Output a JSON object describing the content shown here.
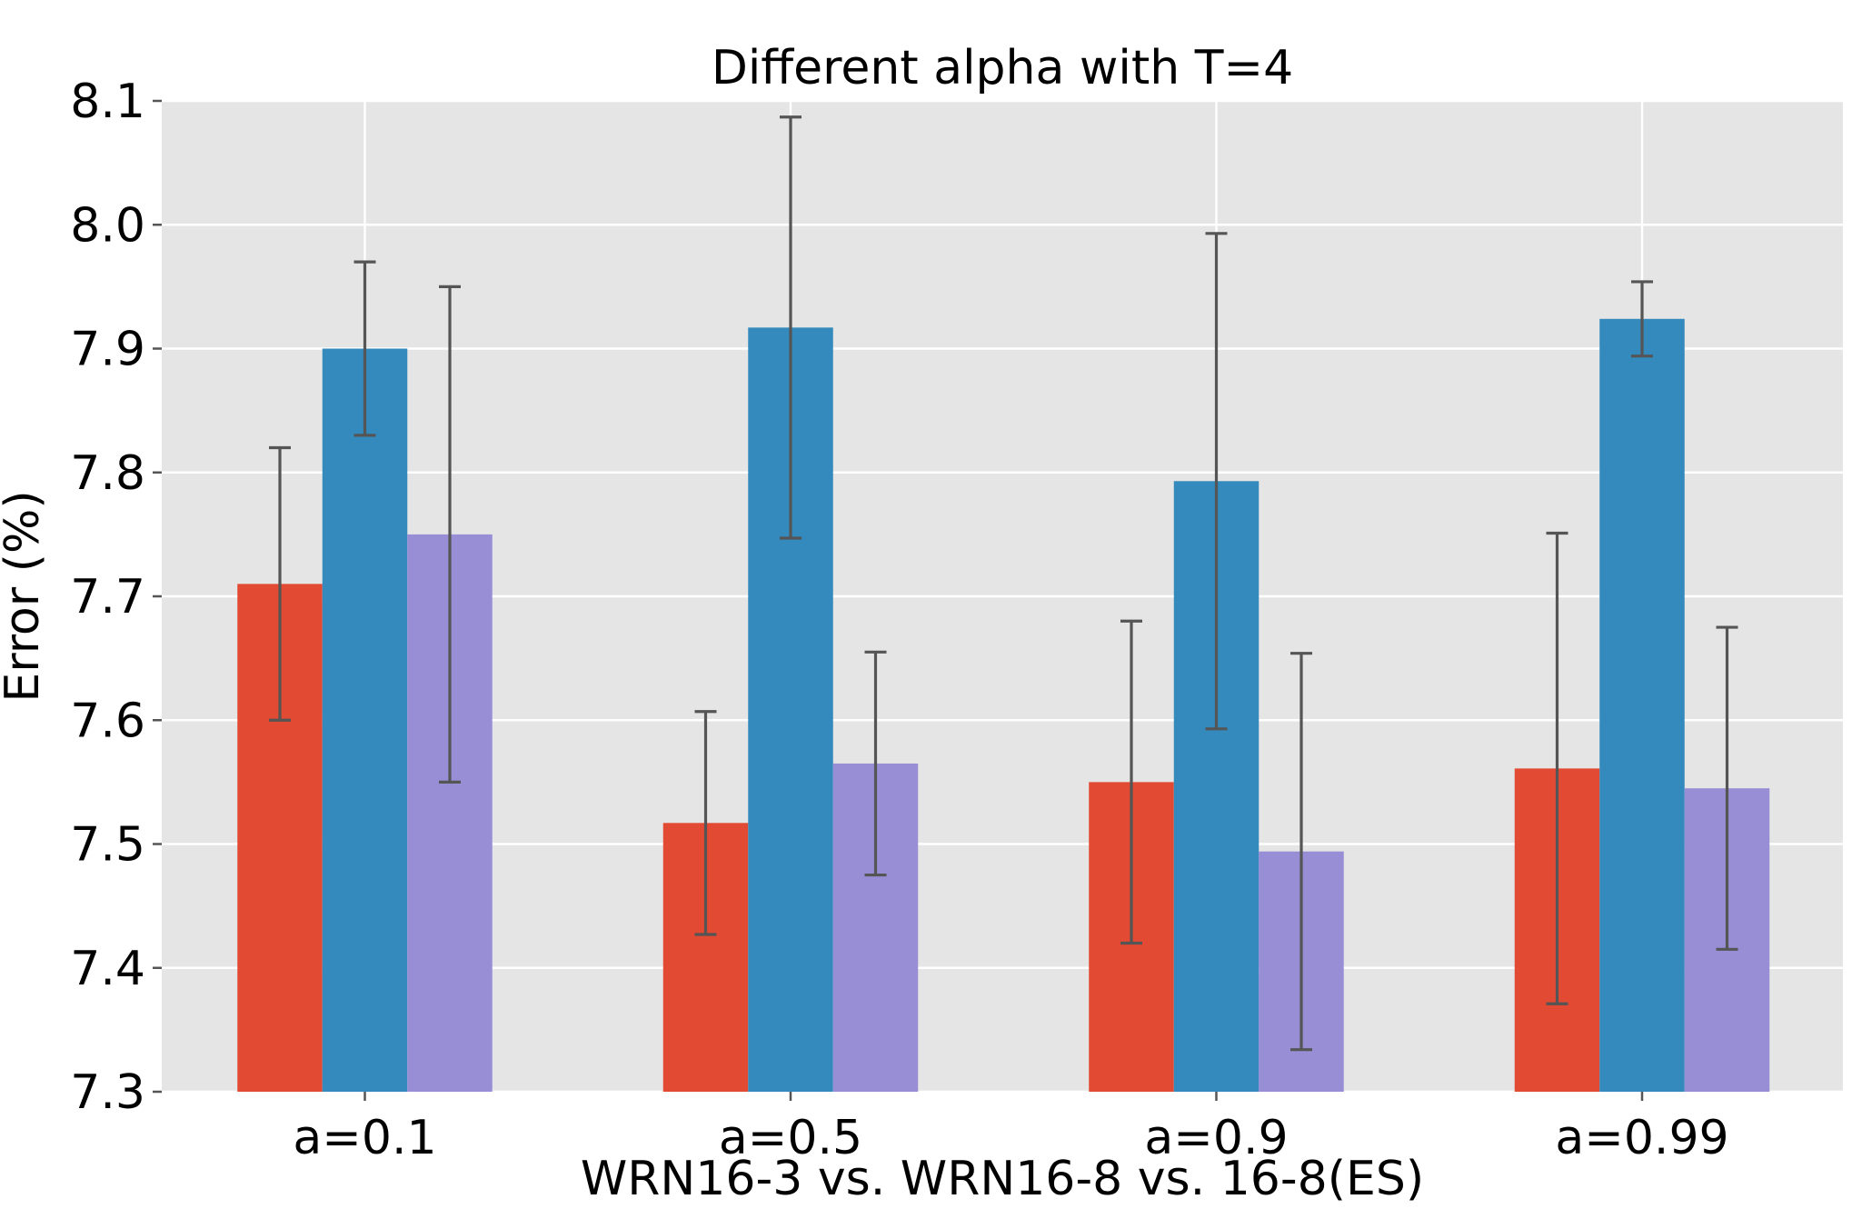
{
  "chart_data": {
    "type": "bar",
    "title": "Different alpha with T=4",
    "xlabel": "WRN16-3 vs. WRN16-8 vs. 16-8(ES)",
    "ylabel": "Error (%)",
    "ylim": [
      7.3,
      8.1
    ],
    "yticks": [
      "7.3",
      "7.4",
      "7.5",
      "7.6",
      "7.7",
      "7.8",
      "7.9",
      "8.0",
      "8.1"
    ],
    "categories": [
      "a=0.1",
      "a=0.5",
      "a=0.9",
      "a=0.99"
    ],
    "series": [
      {
        "color": "#E24A33",
        "values": [
          7.71,
          7.517,
          7.55,
          7.561
        ],
        "errors": [
          0.11,
          0.09,
          0.13,
          0.19
        ]
      },
      {
        "color": "#348ABD",
        "values": [
          7.9,
          7.917,
          7.793,
          7.924
        ],
        "errors": [
          0.07,
          0.17,
          0.2,
          0.03
        ]
      },
      {
        "color": "#988ED5",
        "values": [
          7.75,
          7.565,
          7.494,
          7.545
        ],
        "errors": [
          0.2,
          0.09,
          0.16,
          0.13
        ]
      }
    ],
    "plot_background": "#E5E5E5",
    "grid": true,
    "legend": "none"
  }
}
